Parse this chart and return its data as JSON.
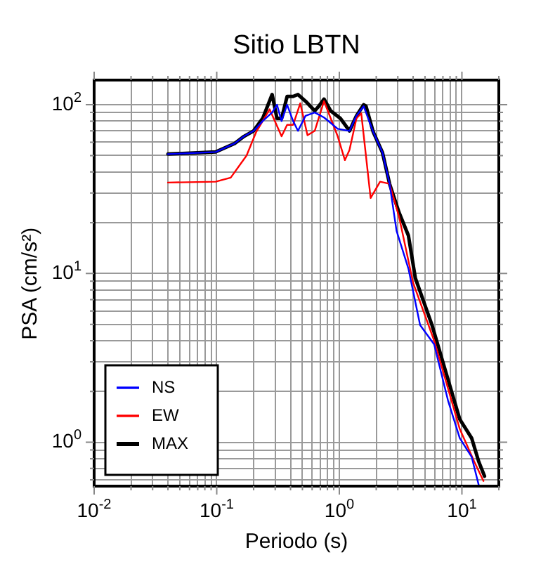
{
  "chart_data": {
    "type": "line",
    "title": "Sitio LBTN",
    "xlabel": "Periodo (s)",
    "ylabel": "PSA (cm/s²)",
    "log": "xy",
    "grid": true,
    "legend": "bottom left",
    "marker": "none",
    "line_style": "solid",
    "xlim": [
      0.01,
      20
    ],
    "ylim": [
      0.55,
      140
    ],
    "xticks": [
      {
        "value": 0.01,
        "label": "10$^{-2}$"
      },
      {
        "value": 0.02,
        "label": null
      },
      {
        "value": 0.03,
        "label": null
      },
      {
        "value": 0.04,
        "label": null
      },
      {
        "value": 0.05,
        "label": null
      },
      {
        "value": 0.06,
        "label": null
      },
      {
        "value": 0.07,
        "label": null
      },
      {
        "value": 0.08,
        "label": null
      },
      {
        "value": 0.09,
        "label": null
      },
      {
        "value": 0.1,
        "label": "10$^{-1}$"
      },
      {
        "value": 0.2,
        "label": null
      },
      {
        "value": 0.3,
        "label": null
      },
      {
        "value": 0.4,
        "label": null
      },
      {
        "value": 0.5,
        "label": null
      },
      {
        "value": 0.6,
        "label": null
      },
      {
        "value": 0.7,
        "label": null
      },
      {
        "value": 0.8,
        "label": null
      },
      {
        "value": 0.9,
        "label": null
      },
      {
        "value": 1,
        "label": "10$^{0}$"
      },
      {
        "value": 2,
        "label": null
      },
      {
        "value": 3,
        "label": null
      },
      {
        "value": 4,
        "label": null
      },
      {
        "value": 5,
        "label": null
      },
      {
        "value": 6,
        "label": null
      },
      {
        "value": 7,
        "label": null
      },
      {
        "value": 8,
        "label": null
      },
      {
        "value": 9,
        "label": null
      },
      {
        "value": 10,
        "label": "10$^{1}$"
      },
      {
        "value": 20,
        "label": null
      }
    ],
    "yticks": [
      {
        "value": 0.6,
        "label": null
      },
      {
        "value": 0.7,
        "label": null
      },
      {
        "value": 0.8,
        "label": null
      },
      {
        "value": 0.9,
        "label": null
      },
      {
        "value": 1,
        "label": "10$^{0}$"
      },
      {
        "value": 2,
        "label": null
      },
      {
        "value": 3,
        "label": null
      },
      {
        "value": 4,
        "label": null
      },
      {
        "value": 5,
        "label": null
      },
      {
        "value": 6,
        "label": null
      },
      {
        "value": 7,
        "label": null
      },
      {
        "value": 8,
        "label": null
      },
      {
        "value": 9,
        "label": null
      },
      {
        "value": 10,
        "label": "10$^{1}$"
      },
      {
        "value": 20,
        "label": null
      },
      {
        "value": 30,
        "label": null
      },
      {
        "value": 40,
        "label": null
      },
      {
        "value": 50,
        "label": null
      },
      {
        "value": 60,
        "label": null
      },
      {
        "value": 70,
        "label": null
      },
      {
        "value": 80,
        "label": null
      },
      {
        "value": 90,
        "label": null
      },
      {
        "value": 100,
        "label": "10$^{2}$"
      }
    ],
    "series": [
      {
        "name": "NS",
        "color": "#0000ff",
        "x": [
          0.04,
          0.098,
          0.14,
          0.167,
          0.2,
          0.237,
          0.283,
          0.31,
          0.338,
          0.375,
          0.42,
          0.46,
          0.53,
          0.63,
          0.75,
          0.85,
          0.97,
          1.21,
          1.38,
          1.58,
          1.89,
          2.25,
          2.57,
          2.93,
          3.66,
          4.56,
          5.94,
          7.7,
          9.6,
          12,
          13.7
        ],
        "values": [
          51,
          52.5,
          59,
          65,
          70,
          80,
          90,
          100,
          80,
          100,
          80,
          70,
          86,
          90,
          84,
          78,
          72,
          70,
          86,
          98,
          69,
          52,
          34,
          17.9,
          10.7,
          4.95,
          3.8,
          1.77,
          1.06,
          0.82,
          0.56
        ]
      },
      {
        "name": "EW",
        "color": "#ff0000",
        "x": [
          0.04,
          0.098,
          0.13,
          0.175,
          0.21,
          0.27,
          0.338,
          0.375,
          0.42,
          0.48,
          0.55,
          0.63,
          0.75,
          0.97,
          1.11,
          1.21,
          1.38,
          1.51,
          1.8,
          2.15,
          2.57,
          3.07,
          4.0,
          5.94,
          9.6,
          12.6,
          15
        ],
        "values": [
          34.6,
          35,
          37,
          50,
          69,
          94,
          65,
          76,
          76,
          102,
          66,
          70,
          105,
          65,
          47,
          54,
          83,
          89,
          28,
          35,
          34,
          21.7,
          8.8,
          4.0,
          1.2,
          0.77,
          0.59
        ]
      },
      {
        "name": "MAX",
        "color": "#000000",
        "x": [
          0.04,
          0.098,
          0.14,
          0.167,
          0.2,
          0.237,
          0.283,
          0.31,
          0.338,
          0.375,
          0.42,
          0.46,
          0.53,
          0.63,
          0.68,
          0.75,
          0.85,
          1.02,
          1.21,
          1.38,
          1.58,
          1.65,
          1.89,
          2.25,
          2.57,
          3.07,
          3.66,
          4.17,
          5.7,
          7.4,
          9.6,
          12,
          13.7,
          15.3
        ],
        "values": [
          51,
          52.5,
          59,
          65,
          70,
          83,
          115,
          83,
          83,
          112,
          112,
          115,
          105,
          92,
          98,
          108,
          92,
          83,
          70,
          86,
          100,
          98,
          69,
          52,
          34,
          23,
          16.8,
          9.4,
          4.95,
          2.6,
          1.37,
          1.06,
          0.77,
          0.63
        ]
      }
    ]
  }
}
